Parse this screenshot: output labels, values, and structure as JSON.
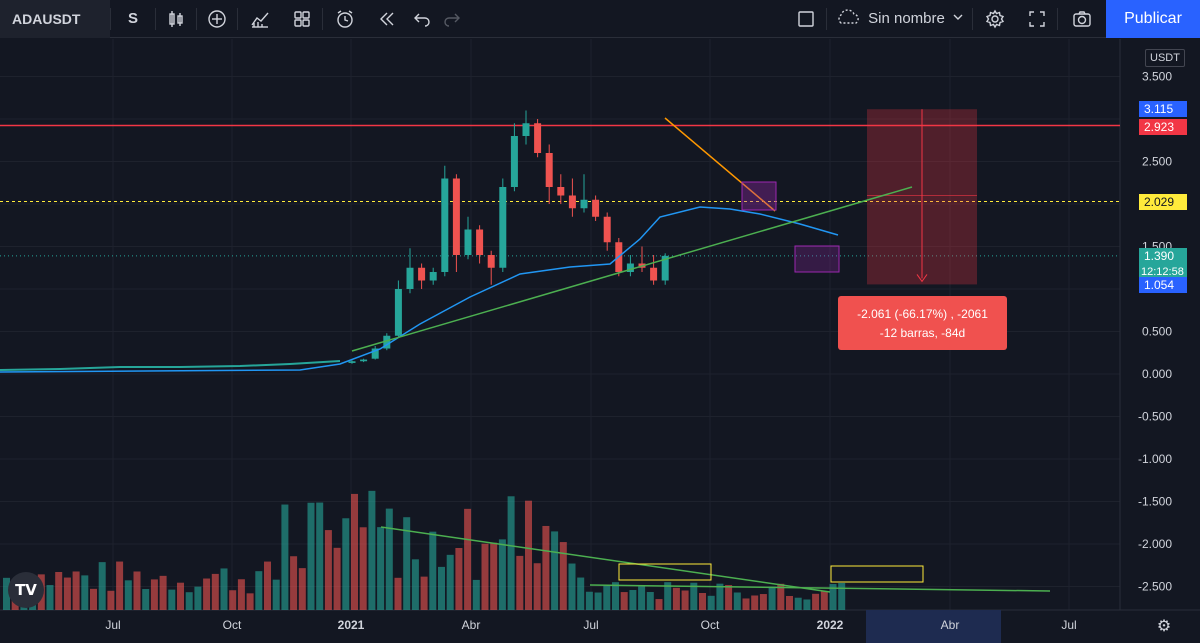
{
  "toolbar": {
    "symbol": "ADAUSDT",
    "interval": "S",
    "layout_name": "Sin nombre",
    "publish_label": "Publicar",
    "icons": [
      "candles-icon",
      "add-indicator-icon",
      "indicators-icon",
      "templates-icon",
      "alert-icon",
      "replay-icon",
      "undo-icon",
      "redo-icon",
      "rectangle-icon",
      "cloud-icon",
      "chevron-down-icon",
      "gear-icon",
      "fullscreen-icon",
      "camera-icon"
    ]
  },
  "price_axis": {
    "currency": "USDT",
    "ticks": [
      "3.500",
      "2.500",
      "1.500",
      "1.000",
      "0.500",
      "0.000",
      "-0.500",
      "-1.000",
      "-1.500",
      "-2.000",
      "-2.500"
    ]
  },
  "time_axis": {
    "ticks": [
      "Jul",
      "Oct",
      "2021",
      "Abr",
      "Jul",
      "Oct",
      "2022",
      "Abr",
      "Jul"
    ]
  },
  "price_tags": [
    {
      "label": "3.115",
      "color": "#2962ff"
    },
    {
      "label": "2.923",
      "color": "#f23645"
    },
    {
      "label": "2.029",
      "color": "#ffeb3b"
    },
    {
      "label": "1.390",
      "color": "#26a69a"
    },
    {
      "label": "12:12:58",
      "color": "#26a69a"
    },
    {
      "label": "1.054",
      "color": "#2962ff"
    }
  ],
  "measure": {
    "line1": "-2.061 (-66.17%) , -2061",
    "line2": "-12 barras, -84d"
  },
  "logo": "TV",
  "chart_data": {
    "type": "candlestick",
    "series": [
      {
        "name": "price",
        "values": [
          {
            "o": 0.13,
            "c": 0.15,
            "h": 0.16,
            "l": 0.12
          },
          {
            "o": 0.15,
            "c": 0.17,
            "h": 0.18,
            "l": 0.14
          },
          {
            "o": 0.18,
            "c": 0.3,
            "h": 0.33,
            "l": 0.17
          },
          {
            "o": 0.3,
            "c": 0.45,
            "h": 0.48,
            "l": 0.28
          },
          {
            "o": 0.45,
            "c": 1.0,
            "h": 1.1,
            "l": 0.44
          },
          {
            "o": 1.0,
            "c": 1.25,
            "h": 1.48,
            "l": 0.95
          },
          {
            "o": 1.25,
            "c": 1.1,
            "h": 1.3,
            "l": 1.0
          },
          {
            "o": 1.1,
            "c": 1.2,
            "h": 1.25,
            "l": 1.05
          },
          {
            "o": 1.2,
            "c": 2.3,
            "h": 2.45,
            "l": 1.15
          },
          {
            "o": 2.3,
            "c": 1.4,
            "h": 2.35,
            "l": 1.2
          },
          {
            "o": 1.4,
            "c": 1.7,
            "h": 1.85,
            "l": 1.35
          },
          {
            "o": 1.7,
            "c": 1.4,
            "h": 1.75,
            "l": 1.3
          },
          {
            "o": 1.4,
            "c": 1.25,
            "h": 1.45,
            "l": 1.05
          },
          {
            "o": 1.25,
            "c": 2.2,
            "h": 2.3,
            "l": 1.2
          },
          {
            "o": 2.2,
            "c": 2.8,
            "h": 2.95,
            "l": 2.15
          },
          {
            "o": 2.8,
            "c": 2.95,
            "h": 3.1,
            "l": 2.7
          },
          {
            "o": 2.95,
            "c": 2.6,
            "h": 3.0,
            "l": 2.55
          },
          {
            "o": 2.6,
            "c": 2.2,
            "h": 2.7,
            "l": 2.0
          },
          {
            "o": 2.2,
            "c": 2.1,
            "h": 2.35,
            "l": 2.0
          },
          {
            "o": 2.1,
            "c": 1.95,
            "h": 2.3,
            "l": 1.85
          },
          {
            "o": 1.95,
            "c": 2.05,
            "h": 2.35,
            "l": 1.9
          },
          {
            "o": 2.05,
            "c": 1.85,
            "h": 2.1,
            "l": 1.8
          },
          {
            "o": 1.85,
            "c": 1.55,
            "h": 1.9,
            "l": 1.45
          },
          {
            "o": 1.55,
            "c": 1.2,
            "h": 1.6,
            "l": 1.15
          },
          {
            "o": 1.2,
            "c": 1.3,
            "h": 1.4,
            "l": 1.15
          },
          {
            "o": 1.3,
            "c": 1.25,
            "h": 1.5,
            "l": 1.2
          },
          {
            "o": 1.25,
            "c": 1.1,
            "h": 1.4,
            "l": 1.05
          },
          {
            "o": 1.1,
            "c": 1.39,
            "h": 1.42,
            "l": 1.05
          }
        ]
      }
    ],
    "ylim": [
      -2.7,
      3.7
    ]
  }
}
